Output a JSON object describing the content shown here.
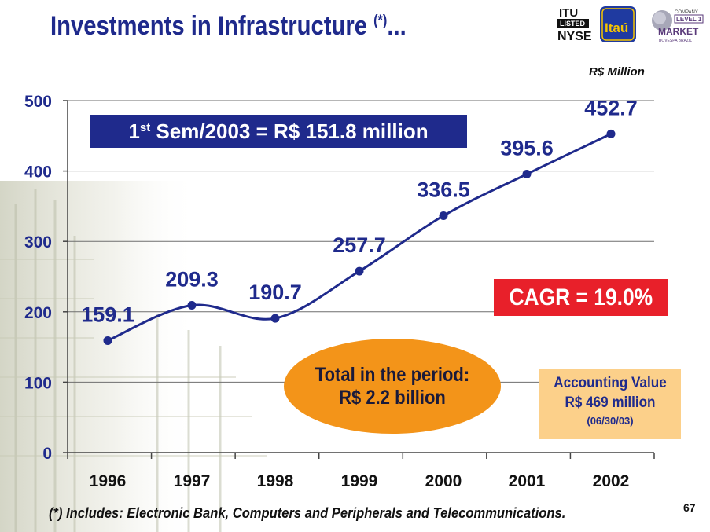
{
  "title": "Investments in Infrastructure",
  "title_mark": "(*)",
  "title_suffix": "...",
  "unit": "R$ Million",
  "semester": {
    "prefix": "1",
    "sup": "st",
    "text": " Sem/2003 = R$ 151.8 million"
  },
  "cagr": "CAGR = 19.0%",
  "total": {
    "line1": "Total in the period:",
    "line2": "R$ 2.2 billion"
  },
  "accounting": {
    "line1": "Accounting Value",
    "line2": "R$ 469 million",
    "line3": "(06/30/03)"
  },
  "footnote": "(*) Includes: Electronic Bank, Computers and Peripherals and Telecommunications.",
  "page_number": "67",
  "logos": {
    "itu_top": "ITU",
    "listed": "LISTED",
    "nyse": "NYSE",
    "itau": "Itaú",
    "company": "COMPANY",
    "level": "LEVEL 1",
    "market": "MARKET",
    "bovespa": "BOVESPA BRAZIL"
  },
  "colors": {
    "navy": "#1f2a8c",
    "red": "#e8202a",
    "orange": "#f39419",
    "peach": "#fcd08a"
  },
  "chart_data": {
    "type": "line",
    "categories": [
      "1996",
      "1997",
      "1998",
      "1999",
      "2000",
      "2001",
      "2002"
    ],
    "values": [
      159.1,
      209.3,
      190.7,
      257.7,
      336.5,
      395.6,
      452.7
    ],
    "value_labels": [
      "159.1",
      "209.3",
      "190.7",
      "257.7",
      "336.5",
      "395.6",
      "452.7"
    ],
    "ylim": [
      0,
      500
    ],
    "yticks": [
      0,
      100,
      200,
      300,
      400,
      500
    ],
    "grid": true,
    "line_color": "#1f2a8c"
  }
}
